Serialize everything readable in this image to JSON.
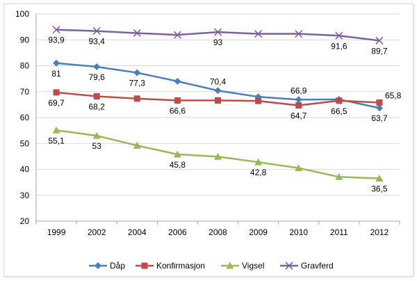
{
  "chart_data": {
    "type": "line",
    "categories": [
      "1999",
      "2002",
      "2004",
      "2006",
      "2008",
      "2009",
      "2010",
      "2011",
      "2012"
    ],
    "ylim": [
      20,
      100
    ],
    "yticks": [
      20,
      30,
      40,
      50,
      60,
      70,
      80,
      90,
      100
    ],
    "grid": true,
    "legend": "bottom",
    "series": [
      {
        "name": "Dåp",
        "color": "#4a7ebb",
        "marker": "diamond",
        "values": [
          81,
          79.6,
          77.3,
          74,
          70.4,
          68,
          66.9,
          67,
          63.7
        ],
        "labels": [
          "81",
          "79,6",
          "77,3",
          "",
          "70,4",
          "",
          "66,9",
          "",
          "63,7"
        ],
        "label_pos": [
          "below",
          "below",
          "below",
          "",
          "above",
          "",
          "above",
          "",
          "below"
        ]
      },
      {
        "name": "Konfirmasjon",
        "color": "#be4b48",
        "marker": "square",
        "values": [
          69.7,
          68.2,
          67.3,
          66.6,
          66.6,
          66.4,
          64.7,
          66.5,
          65.8
        ],
        "labels": [
          "69,7",
          "68,2",
          "",
          "66,6",
          "",
          "",
          "64,7",
          "66,5",
          "65,8"
        ],
        "label_pos": [
          "below",
          "below",
          "",
          "below",
          "",
          "",
          "below",
          "below",
          "above-right"
        ]
      },
      {
        "name": "Vigsel",
        "color": "#98b954",
        "marker": "triangle",
        "values": [
          55.1,
          53,
          49.2,
          45.8,
          44.9,
          42.8,
          40.5,
          37.1,
          36.5
        ],
        "labels": [
          "55,1",
          "53",
          "",
          "45,8",
          "",
          "42,8",
          "",
          "",
          "36,5"
        ],
        "label_pos": [
          "below",
          "below",
          "",
          "below",
          "",
          "below",
          "",
          "",
          "below"
        ]
      },
      {
        "name": "Gravferd",
        "color": "#7d60a0",
        "marker": "x",
        "values": [
          93.9,
          93.4,
          92.6,
          91.9,
          93,
          92.3,
          92.3,
          91.6,
          89.7
        ],
        "labels": [
          "93,9",
          "93,4",
          "",
          "",
          "93",
          "",
          "",
          "91,6",
          "89,7"
        ],
        "label_pos": [
          "below",
          "below",
          "",
          "",
          "below",
          "",
          "",
          "below",
          "below"
        ]
      }
    ]
  }
}
